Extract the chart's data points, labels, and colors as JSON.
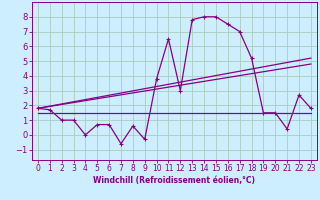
{
  "xlabel": "Windchill (Refroidissement éolien,°C)",
  "bg_color": "#cceeff",
  "grid_color": "#aaccbb",
  "line_color": "#880088",
  "x_ticks": [
    0,
    1,
    2,
    3,
    4,
    5,
    6,
    7,
    8,
    9,
    10,
    11,
    12,
    13,
    14,
    15,
    16,
    17,
    18,
    19,
    20,
    21,
    22,
    23
  ],
  "y_ticks": [
    -1,
    0,
    1,
    2,
    3,
    4,
    5,
    6,
    7,
    8
  ],
  "xlim": [
    -0.5,
    23.5
  ],
  "ylim": [
    -1.7,
    9.0
  ],
  "curve1_x": [
    0,
    1,
    2,
    3,
    4,
    5,
    6,
    7,
    8,
    9,
    10,
    11,
    12,
    13,
    14,
    15,
    16,
    17,
    18,
    19,
    20,
    21,
    22,
    23
  ],
  "curve1_y": [
    1.8,
    1.7,
    1.0,
    1.0,
    0.0,
    0.7,
    0.7,
    -0.6,
    0.6,
    -0.3,
    3.8,
    6.5,
    3.0,
    7.8,
    8.0,
    8.0,
    7.5,
    7.0,
    5.2,
    1.5,
    1.5,
    0.4,
    2.7,
    1.8
  ],
  "line1_x": [
    0,
    23
  ],
  "line1_y": [
    1.8,
    5.2
  ],
  "line2_x": [
    0,
    23
  ],
  "line2_y": [
    1.8,
    4.8
  ],
  "line3_x": [
    0,
    23
  ],
  "line3_y": [
    1.5,
    1.5
  ],
  "xlabel_fontsize": 5.5,
  "tick_fontsize": 5.5,
  "ylabel_fontsize": 6
}
